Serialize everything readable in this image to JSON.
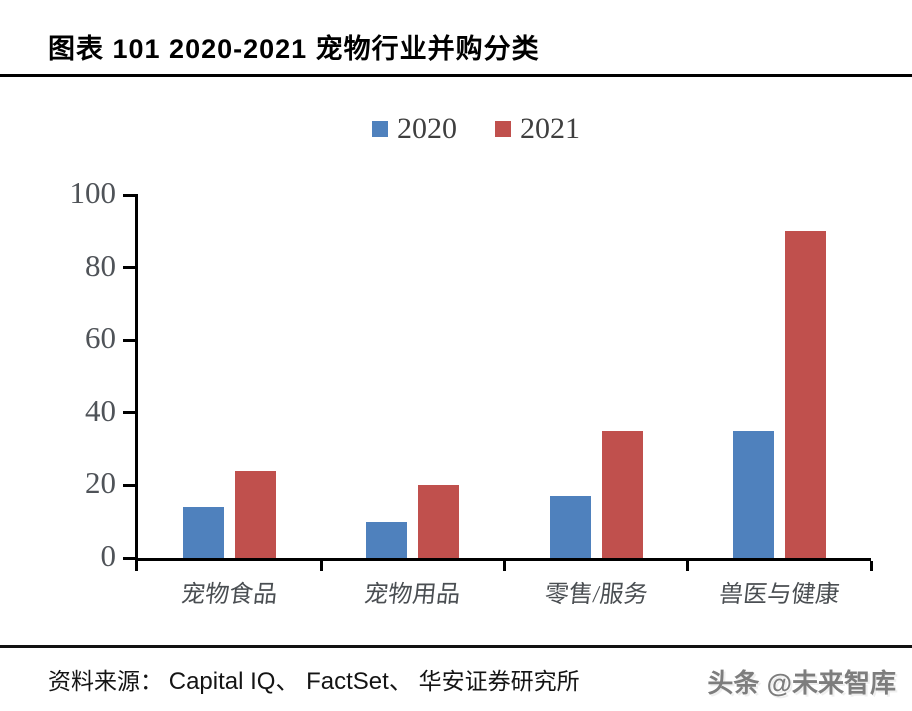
{
  "title": "图表 101 2020-2021 宠物行业并购分类",
  "source": {
    "prefix": "资料来源：",
    "latin": "Capital IQ、 FactSet、",
    "cn": "华安证券研究所"
  },
  "watermark": "头条 @未来智库",
  "colors": {
    "series_2020": "#4F81BD",
    "series_2021": "#C0504D",
    "axis": "#000000",
    "tick_label": "#4f5358"
  },
  "chart_data": {
    "type": "bar",
    "title": "图表 101 2020-2021 宠物行业并购分类",
    "categories": [
      "宠物食品",
      "宠物用品",
      "零售/服务",
      "兽医与健康"
    ],
    "series": [
      {
        "name": "2020",
        "color": "#4F81BD",
        "values": [
          14,
          10,
          17,
          35
        ]
      },
      {
        "name": "2021",
        "color": "#C0504D",
        "values": [
          24,
          20,
          35,
          90
        ]
      }
    ],
    "xlabel": "",
    "ylabel": "",
    "ylim": [
      0,
      100
    ],
    "yticks": [
      0,
      20,
      40,
      60,
      80,
      100
    ],
    "grid": false,
    "legend_position": "top-center"
  }
}
